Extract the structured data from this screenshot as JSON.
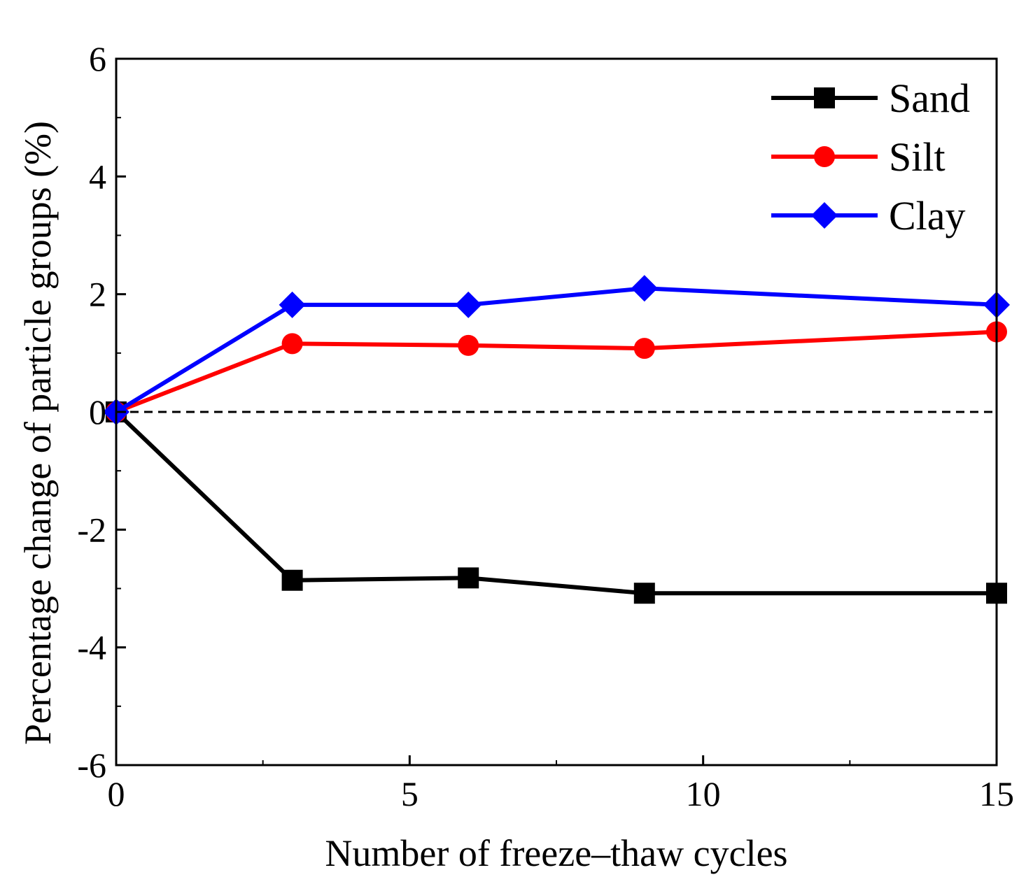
{
  "chart_data": {
    "type": "line",
    "title": "",
    "xlabel": "Number of freeze–thaw cycles",
    "ylabel": "Percentage  change  of particle groups (%)",
    "xlim": [
      0,
      15
    ],
    "ylim": [
      -6,
      6
    ],
    "xticks": [
      0,
      5,
      10,
      15
    ],
    "xtick_labels": [
      "0",
      "5",
      "10",
      "15"
    ],
    "yticks": [
      -6,
      -4,
      -2,
      0,
      2,
      4,
      6
    ],
    "ytick_labels": [
      "-6",
      "-4",
      "-2",
      "0",
      "2",
      "4",
      "6"
    ],
    "grid": false,
    "legend_position": "top-right",
    "reference_line": {
      "y": 0,
      "style": "dashed",
      "color": "#000000"
    },
    "x": [
      0,
      3,
      6,
      9,
      15
    ],
    "series": [
      {
        "name": "Sand",
        "color": "#000000",
        "marker": "square",
        "values": [
          0,
          -2.86,
          -2.82,
          -3.08,
          -3.08
        ]
      },
      {
        "name": "Silt",
        "color": "#ff0000",
        "marker": "circle",
        "values": [
          0,
          1.16,
          1.13,
          1.08,
          1.36
        ]
      },
      {
        "name": "Clay",
        "color": "#0000ff",
        "marker": "diamond",
        "values": [
          0,
          1.82,
          1.82,
          2.1,
          1.82
        ]
      }
    ]
  }
}
